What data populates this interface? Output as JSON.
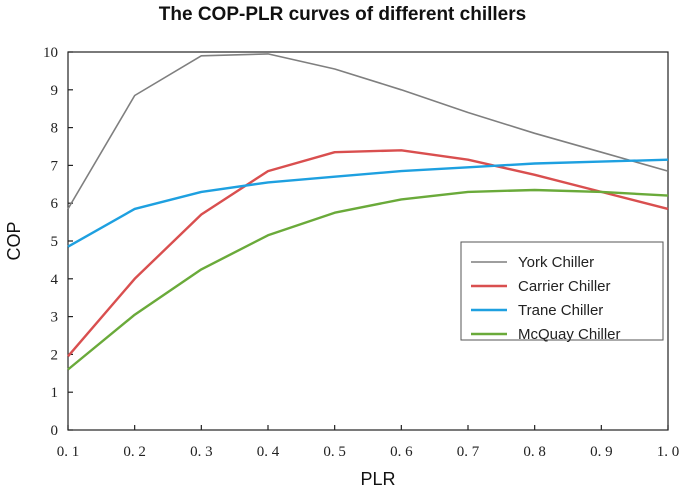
{
  "chart_data": {
    "type": "line",
    "title": "The COP-PLR curves of different chillers",
    "xlabel": "PLR",
    "ylabel": "COP",
    "xlim": [
      0.1,
      1.0
    ],
    "ylim": [
      0,
      10
    ],
    "x_ticks": [
      "0. 1",
      "0. 2",
      "0. 3",
      "0. 4",
      "0. 5",
      "0. 6",
      "0. 7",
      "0. 8",
      "0. 9",
      "1. 0"
    ],
    "y_ticks": [
      "0",
      "1",
      "2",
      "3",
      "4",
      "5",
      "6",
      "7",
      "8",
      "9",
      "10"
    ],
    "grid": false,
    "legend_position": "right",
    "x": [
      0.1,
      0.2,
      0.3,
      0.4,
      0.5,
      0.6,
      0.7,
      0.8,
      0.9,
      1.0
    ],
    "series": [
      {
        "name": "York Chiller",
        "color": "#7f7f7f",
        "values": [
          5.85,
          8.85,
          9.9,
          9.95,
          9.55,
          9.0,
          8.4,
          7.85,
          7.35,
          6.85
        ]
      },
      {
        "name": "Carrier Chiller",
        "color": "#d94f4f",
        "values": [
          1.95,
          4.0,
          5.7,
          6.85,
          7.35,
          7.4,
          7.15,
          6.75,
          6.3,
          5.85
        ]
      },
      {
        "name": "Trane Chiller",
        "color": "#1ea0e0",
        "values": [
          4.85,
          5.85,
          6.3,
          6.55,
          6.7,
          6.85,
          6.95,
          7.05,
          7.1,
          7.15
        ]
      },
      {
        "name": "McQuay Chiller",
        "color": "#6aaa3a",
        "values": [
          1.6,
          3.05,
          4.25,
          5.15,
          5.75,
          6.1,
          6.3,
          6.35,
          6.3,
          6.2
        ]
      }
    ]
  }
}
